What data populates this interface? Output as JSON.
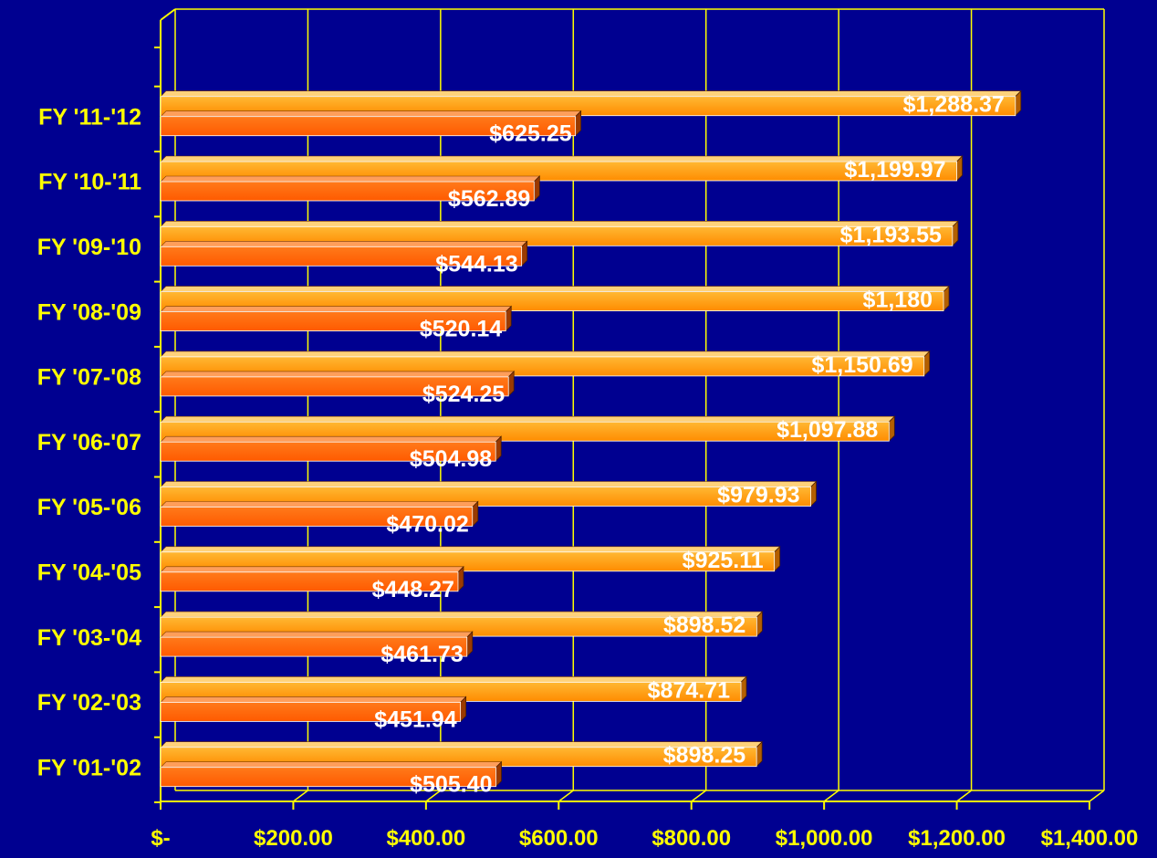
{
  "chart_data": {
    "type": "bar",
    "orientation": "horizontal",
    "style": "3d",
    "title": "",
    "xlabel": "",
    "ylabel": "",
    "categories": [
      "FY '01-'02",
      "FY '02-'03",
      "FY '03-'04",
      "FY '04-'05",
      "FY '05-'06",
      "FY '06-'07",
      "FY '07-'08",
      "FY '08-'09",
      "FY '09-'10",
      "FY '10-'11",
      "FY '11-'12"
    ],
    "series": [
      {
        "color": "#FF9900",
        "values": [
          898.25,
          874.71,
          898.52,
          925.11,
          979.93,
          1097.88,
          1150.69,
          1180,
          1193.55,
          1199.97,
          1288.37
        ],
        "data_labels": [
          "$898.25",
          "$874.71",
          "$898.52",
          "$925.11",
          "$979.93",
          "$1,097.88",
          "$1,150.69",
          "$1,180",
          "$1,193.55",
          "$1,199.97",
          "$1,288.37"
        ]
      },
      {
        "color": "#FF6600",
        "values": [
          505.4,
          451.94,
          461.73,
          448.27,
          470.02,
          504.98,
          524.25,
          520.14,
          544.13,
          562.89,
          625.25
        ],
        "data_labels": [
          "$505.40",
          "$451.94",
          "$461.73",
          "$448.27",
          "$470.02",
          "$504.98",
          "$524.25",
          "$520.14",
          "$544.13",
          "$562.89",
          "$625.25"
        ]
      }
    ],
    "xlim": [
      0,
      1400
    ],
    "xticks": [
      0,
      200,
      400,
      600,
      800,
      1000,
      1200,
      1400
    ],
    "xtick_labels": [
      "$-",
      "$200.00",
      "$400.00",
      "$600.00",
      "$800.00",
      "$1,000.00",
      "$1,200.00",
      "$1,400.00"
    ],
    "grid": "vertical",
    "legend": "none",
    "colors": {
      "background": "#000090",
      "grid": "#FFFF00",
      "axis": "#FFFF00",
      "category_text": "#FFFF00",
      "tick_text": "#FFFF00",
      "data_label_text": "#FFFFFF"
    }
  }
}
